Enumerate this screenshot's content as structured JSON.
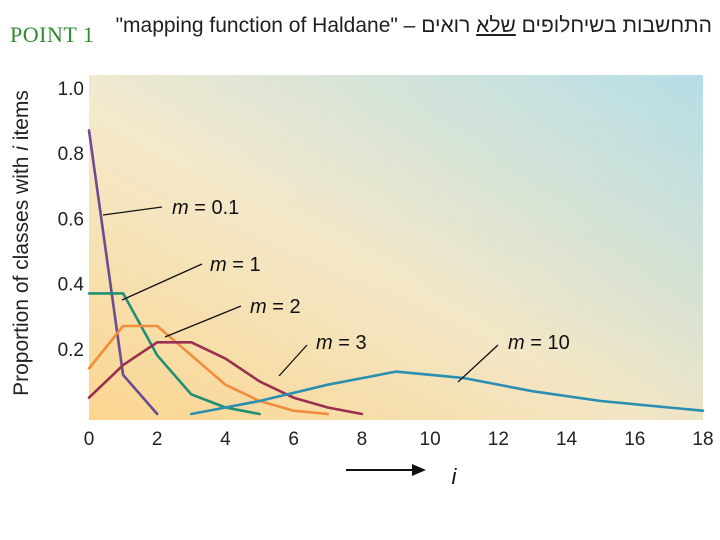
{
  "slide": {
    "label": "POINT 1",
    "title_parts": {
      "lead": "התחשבות בשיחלופים ",
      "underlined": "שלא",
      "tail": " רואים – \"mapping function of Haldane\""
    }
  },
  "colors": {
    "m01": "#6a4c93",
    "m1": "#1f9073",
    "m2": "#f08c3c",
    "m3": "#9b2f4f",
    "m10": "#2a8fb0",
    "axis_text": "#222222",
    "annotation": "#111111"
  },
  "chart_data": {
    "type": "line",
    "title": "",
    "xlabel": "i",
    "xlabel_arrow": true,
    "ylabel": "Proportion of classes with i items",
    "xlim": [
      0,
      18
    ],
    "ylim": [
      0,
      1.0
    ],
    "x_ticks": [
      0,
      2,
      4,
      6,
      8,
      10,
      12,
      14,
      16,
      18
    ],
    "y_ticks": [
      0.2,
      0.4,
      0.6,
      0.8,
      1.0
    ],
    "x_tick_labels": [
      "0",
      "2",
      "4",
      "6",
      "8",
      "10",
      "12",
      "14",
      "16",
      "18"
    ],
    "y_tick_labels": [
      "0.2",
      "0.4",
      "0.6",
      "0.8",
      "1.0"
    ],
    "grid": false,
    "background": "gradient",
    "series": [
      {
        "name": "m = 0.1",
        "color_key": "m01",
        "x": [
          0,
          1,
          2
        ],
        "y": [
          0.87,
          0.12,
          0.0
        ]
      },
      {
        "name": "m = 1",
        "color_key": "m1",
        "x": [
          0,
          1,
          2,
          3,
          4,
          5
        ],
        "y": [
          0.37,
          0.37,
          0.18,
          0.06,
          0.02,
          0.0
        ]
      },
      {
        "name": "m = 2",
        "color_key": "m2",
        "x": [
          0,
          1,
          2,
          3,
          4,
          5,
          6,
          7
        ],
        "y": [
          0.14,
          0.27,
          0.27,
          0.18,
          0.09,
          0.04,
          0.01,
          0.0
        ]
      },
      {
        "name": "m = 3",
        "color_key": "m3",
        "x": [
          0,
          1,
          2,
          3,
          4,
          5,
          6,
          7,
          8
        ],
        "y": [
          0.05,
          0.15,
          0.22,
          0.22,
          0.17,
          0.1,
          0.05,
          0.02,
          0.0
        ]
      },
      {
        "name": "m = 10",
        "color_key": "m10",
        "x": [
          3,
          5,
          7,
          9,
          11,
          13,
          15,
          17,
          18
        ],
        "y": [
          0.0,
          0.04,
          0.09,
          0.13,
          0.11,
          0.07,
          0.04,
          0.02,
          0.01
        ]
      }
    ],
    "annotations": [
      {
        "label_prefix": "m",
        "label_suffix": " = 0.1",
        "series": "m = 0.1"
      },
      {
        "label_prefix": "m",
        "label_suffix": " = 1",
        "series": "m = 1"
      },
      {
        "label_prefix": "m",
        "label_suffix": " = 2",
        "series": "m = 2"
      },
      {
        "label_prefix": "m",
        "label_suffix": " = 3",
        "series": "m = 3"
      },
      {
        "label_prefix": "m",
        "label_suffix": " = 10",
        "series": "m = 10"
      }
    ]
  }
}
